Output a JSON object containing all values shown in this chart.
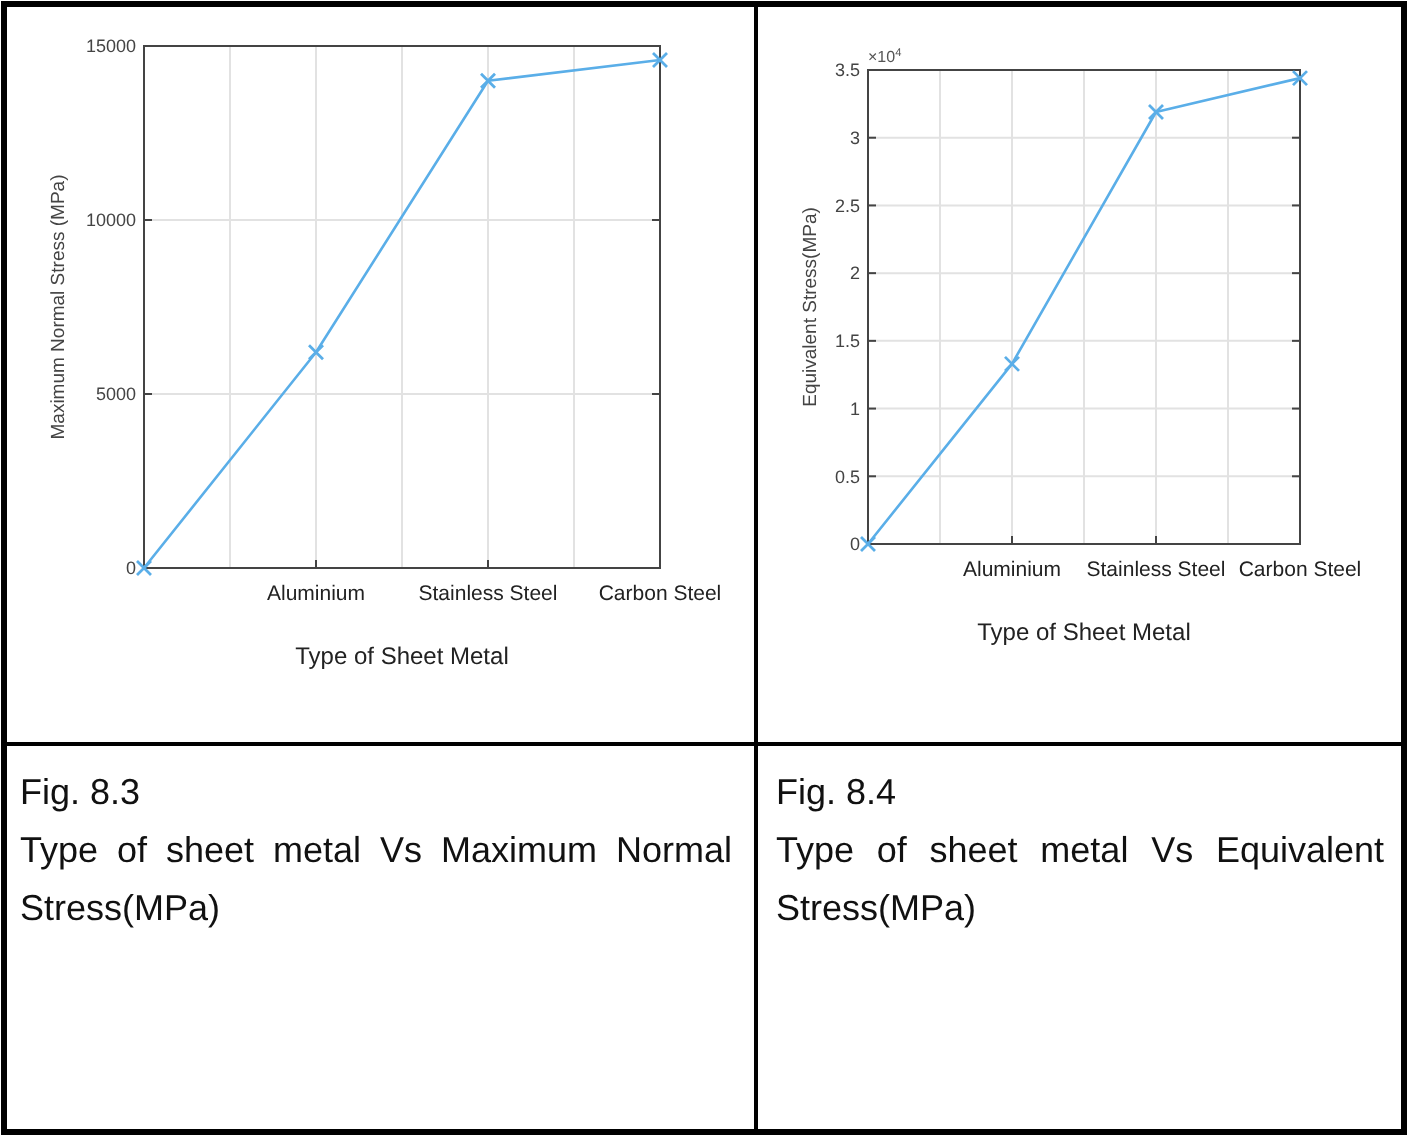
{
  "chart_data": [
    {
      "type": "line",
      "title": "Fig. 8.3",
      "subtitle": "Type of sheet metal Vs Maximum Normal Stress(MPa)",
      "xlabel": "Type of Sheet Metal",
      "ylabel": "Maximum Normal Stress (MPa)",
      "categories": [
        null,
        "Aluminium",
        "Stainless Steel",
        "Carbon Steel"
      ],
      "series": [
        {
          "color": "#5aaee8",
          "values": [
            0,
            6200,
            14000,
            14600
          ]
        }
      ],
      "ylim": [
        0,
        15000
      ],
      "yticks": [
        0,
        5000,
        10000,
        15000
      ],
      "grid": true,
      "marker": "cross",
      "line_style": "solid"
    },
    {
      "type": "line",
      "title": "Fig. 8.4",
      "subtitle": "Type of sheet metal Vs Equivalent Stress(MPa)",
      "xlabel": "Type of Sheet Metal",
      "ylabel": "Equivalent Stress(MPa)",
      "annotations": [
        "×10$^{4}$"
      ],
      "categories": [
        null,
        "Aluminium",
        "Stainless Steel",
        "Carbon Steel"
      ],
      "series": [
        {
          "color": "#5aaee8",
          "values": [
            0,
            1.33,
            3.19,
            3.44
          ]
        }
      ],
      "ylim": [
        0,
        3.5
      ],
      "yticks": [
        0,
        0.5,
        1,
        1.5,
        2,
        2.5,
        3,
        3.5
      ],
      "grid": true,
      "marker": "cross",
      "line_style": "solid"
    }
  ]
}
